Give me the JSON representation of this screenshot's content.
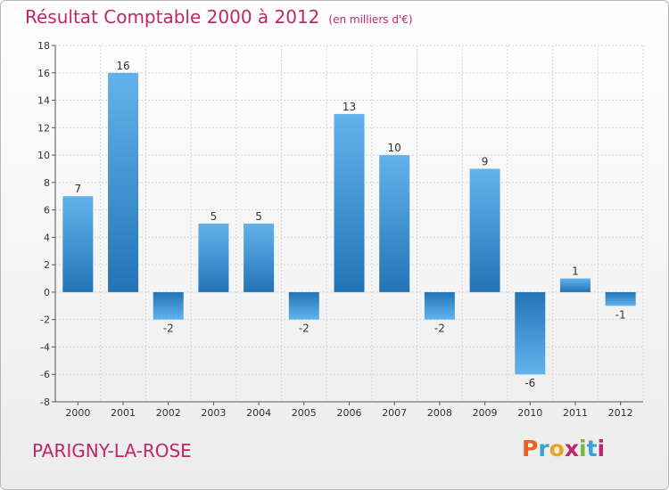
{
  "chart_data": {
    "type": "bar",
    "title": "Résultat Comptable 2000 à 2012",
    "unit": "(en milliers d'€)",
    "categories": [
      "2000",
      "2001",
      "2002",
      "2003",
      "2004",
      "2005",
      "2006",
      "2007",
      "2008",
      "2009",
      "2010",
      "2011",
      "2012"
    ],
    "values": [
      7,
      16,
      -2,
      5,
      5,
      -2,
      13,
      10,
      -2,
      9,
      -6,
      1,
      -1
    ],
    "ylim": [
      -8,
      18
    ],
    "yticks": [
      -8,
      -6,
      -4,
      -2,
      0,
      2,
      4,
      6,
      8,
      10,
      12,
      14,
      16,
      18
    ],
    "xlabel": "",
    "ylabel": "",
    "bar_color": "#3d8fd0",
    "gradient_light": "#62b3ec",
    "gradient_dark": "#2374b6"
  },
  "footer": {
    "commune": "PARIGNY-LA-ROSE",
    "logo_letters": [
      "P",
      "r",
      "o",
      "x",
      "i",
      "t",
      "i"
    ],
    "logo_colors": [
      "#e8641e",
      "#3aa0d8",
      "#e8a61e",
      "#c0266a",
      "#7bb83a",
      "#3aa0d8",
      "#c0266a"
    ]
  }
}
